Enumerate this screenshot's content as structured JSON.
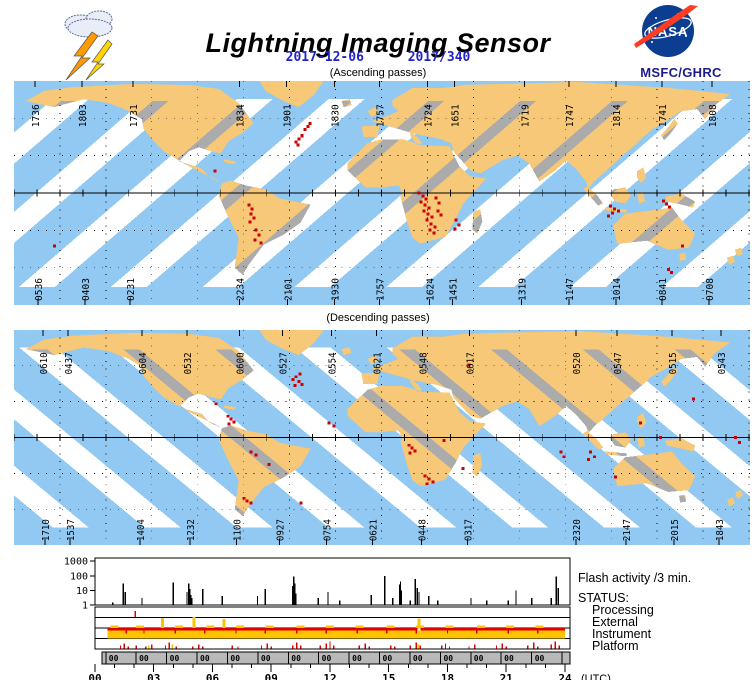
{
  "colors": {
    "swath_blue": "#92c9f2",
    "land_gray": "#ababab",
    "swath_orange": "#f7c878",
    "flash_red": "#cc0000",
    "status_gold": "#ffc400",
    "status_red": "#e00000",
    "orbit_band_gray": "#b9b9b9",
    "date_blue": "#2222cc",
    "org_blue": "#1b1b8f",
    "nasa_blue": "#0b3d91",
    "nasa_red": "#fc3d21"
  },
  "header": {
    "title": "Lightning Imaging Sensor",
    "date_iso": "2017-12-06",
    "date_doy": "2017/340",
    "ascending_caption": "(Ascending passes)",
    "descending_caption": "(Descending passes)",
    "nasa": "NASA",
    "org": "MSFC/GHRC"
  },
  "maps": {
    "ascending": {
      "top_labels": [
        [
          21,
          "1736"
        ],
        [
          68,
          "1803"
        ],
        [
          119,
          "1731"
        ],
        [
          226,
          "1834"
        ],
        [
          273,
          "1901"
        ],
        [
          321,
          "1830"
        ],
        [
          366,
          "1757"
        ],
        [
          414,
          "1724"
        ],
        [
          441,
          "1651"
        ],
        [
          511,
          "1719"
        ],
        [
          556,
          "1747"
        ],
        [
          603,
          "1814"
        ],
        [
          649,
          "1741"
        ],
        [
          699,
          "1808"
        ]
      ],
      "bottom_labels": [
        [
          24,
          "0536"
        ],
        [
          71,
          "0403"
        ],
        [
          116,
          "0231"
        ],
        [
          226,
          "2234"
        ],
        [
          274,
          "2101"
        ],
        [
          321,
          "1930"
        ],
        [
          366,
          "1757"
        ],
        [
          416,
          "1624"
        ],
        [
          439,
          "1451"
        ],
        [
          508,
          "1319"
        ],
        [
          556,
          "1147"
        ],
        [
          603,
          "1014"
        ],
        [
          649,
          "0841"
        ],
        [
          696,
          "0708"
        ]
      ],
      "flash_dots": [
        [
          281,
          59
        ],
        [
          284,
          56
        ],
        [
          287,
          53
        ],
        [
          283,
          62
        ],
        [
          290,
          47
        ],
        [
          293,
          44
        ],
        [
          295,
          41
        ],
        [
          200,
          88
        ],
        [
          234,
          122
        ],
        [
          237,
          126
        ],
        [
          236,
          131
        ],
        [
          239,
          135
        ],
        [
          235,
          139
        ],
        [
          241,
          147
        ],
        [
          244,
          152
        ],
        [
          240,
          157
        ],
        [
          246,
          160
        ],
        [
          404,
          110
        ],
        [
          408,
          113
        ],
        [
          411,
          116
        ],
        [
          406,
          119
        ],
        [
          410,
          122
        ],
        [
          414,
          125
        ],
        [
          409,
          128
        ],
        [
          413,
          131
        ],
        [
          417,
          134
        ],
        [
          412,
          137
        ],
        [
          416,
          141
        ],
        [
          420,
          144
        ],
        [
          415,
          147
        ],
        [
          419,
          150
        ],
        [
          423,
          128
        ],
        [
          426,
          132
        ],
        [
          421,
          115
        ],
        [
          424,
          120
        ],
        [
          441,
          137
        ],
        [
          444,
          142
        ],
        [
          440,
          146
        ],
        [
          596,
          123
        ],
        [
          600,
          126
        ],
        [
          598,
          130
        ],
        [
          604,
          128
        ],
        [
          594,
          133
        ],
        [
          649,
          118
        ],
        [
          652,
          121
        ],
        [
          655,
          124
        ],
        [
          668,
          163
        ],
        [
          654,
          186
        ],
        [
          657,
          189
        ],
        [
          39,
          163
        ]
      ]
    },
    "descending": {
      "top_labels": [
        [
          29,
          "0610"
        ],
        [
          54,
          "0437"
        ],
        [
          128,
          "0604"
        ],
        [
          173,
          "0532"
        ],
        [
          226,
          "0600"
        ],
        [
          269,
          "0527"
        ],
        [
          318,
          "0554"
        ],
        [
          363,
          "0621"
        ],
        [
          409,
          "0548"
        ],
        [
          456,
          "0617"
        ],
        [
          563,
          "0520"
        ],
        [
          604,
          "0547"
        ],
        [
          659,
          "0515"
        ],
        [
          708,
          "0543"
        ]
      ],
      "bottom_labels": [
        [
          31,
          "1710"
        ],
        [
          56,
          "1537"
        ],
        [
          126,
          "1404"
        ],
        [
          176,
          "1232"
        ],
        [
          223,
          "1100"
        ],
        [
          266,
          "0927"
        ],
        [
          313,
          "0754"
        ],
        [
          359,
          "0621"
        ],
        [
          408,
          "0448"
        ],
        [
          454,
          "0317"
        ],
        [
          563,
          "2320"
        ],
        [
          613,
          "2147"
        ],
        [
          661,
          "2015"
        ],
        [
          706,
          "1843"
        ]
      ],
      "flash_dots": [
        [
          278,
          50
        ],
        [
          281,
          47
        ],
        [
          284,
          52
        ],
        [
          287,
          55
        ],
        [
          280,
          56
        ],
        [
          285,
          44
        ],
        [
          201,
          75
        ],
        [
          213,
          88
        ],
        [
          216,
          91
        ],
        [
          219,
          94
        ],
        [
          214,
          96
        ],
        [
          314,
          95
        ],
        [
          319,
          98
        ],
        [
          236,
          125
        ],
        [
          241,
          128
        ],
        [
          254,
          138
        ],
        [
          229,
          173
        ],
        [
          232,
          176
        ],
        [
          236,
          178
        ],
        [
          286,
          178
        ],
        [
          394,
          118
        ],
        [
          397,
          121
        ],
        [
          400,
          124
        ],
        [
          395,
          126
        ],
        [
          429,
          113
        ],
        [
          410,
          150
        ],
        [
          414,
          153
        ],
        [
          418,
          156
        ],
        [
          412,
          158
        ],
        [
          448,
          142
        ],
        [
          454,
          35
        ],
        [
          546,
          125
        ],
        [
          549,
          130
        ],
        [
          576,
          125
        ],
        [
          580,
          130
        ],
        [
          574,
          133
        ],
        [
          679,
          70
        ],
        [
          601,
          151
        ],
        [
          626,
          95
        ],
        [
          646,
          110
        ],
        [
          721,
          110
        ],
        [
          725,
          115
        ]
      ]
    }
  },
  "chart_data": {
    "type": "line",
    "x_unit": "hours UTC",
    "xlim": [
      0,
      24
    ],
    "x_ticks": [
      "00",
      "03",
      "06",
      "09",
      "12",
      "15",
      "18",
      "21",
      "24"
    ],
    "x_suffix": "(UTC)",
    "flash_activity": {
      "label": "Flash activity /3 min.",
      "scale": "log",
      "y_ticks": [
        "1000",
        "100",
        "10",
        "1"
      ],
      "ylim": [
        1,
        1000
      ],
      "spikes": [
        [
          0.9,
          1.5
        ],
        [
          1.45,
          30
        ],
        [
          1.55,
          8
        ],
        [
          2.4,
          3
        ],
        [
          4.0,
          35
        ],
        [
          4.7,
          8
        ],
        [
          4.78,
          30
        ],
        [
          4.85,
          12
        ],
        [
          4.9,
          5
        ],
        [
          4.95,
          3
        ],
        [
          5.5,
          12
        ],
        [
          6.5,
          4
        ],
        [
          8.3,
          4
        ],
        [
          8.7,
          12
        ],
        [
          10.1,
          20
        ],
        [
          10.15,
          90
        ],
        [
          10.2,
          30
        ],
        [
          10.25,
          6
        ],
        [
          11.4,
          3
        ],
        [
          11.9,
          8
        ],
        [
          12.5,
          2
        ],
        [
          14.1,
          5
        ],
        [
          14.8,
          100
        ],
        [
          15.2,
          3
        ],
        [
          15.55,
          25
        ],
        [
          15.6,
          40
        ],
        [
          15.65,
          10
        ],
        [
          16.1,
          2
        ],
        [
          16.35,
          60
        ],
        [
          16.45,
          15
        ],
        [
          16.55,
          8
        ],
        [
          17.05,
          4
        ],
        [
          17.5,
          2
        ],
        [
          19.2,
          3
        ],
        [
          20.0,
          2
        ],
        [
          21.1,
          2
        ],
        [
          21.5,
          10
        ],
        [
          22.3,
          3
        ],
        [
          23.3,
          3
        ],
        [
          23.55,
          90
        ],
        [
          23.65,
          15
        ]
      ]
    },
    "status": {
      "label": "STATUS:",
      "rows": [
        "Processing",
        "External",
        "Instrument",
        "Platform"
      ],
      "processing_events": [
        [
          2.05,
          6
        ]
      ],
      "external_dashes": [
        1.0,
        2.3,
        4.3,
        5.9,
        7.4,
        8.9,
        10.5,
        12.0,
        13.5,
        15.1,
        16.6,
        18.1,
        19.7,
        21.2,
        22.7
      ],
      "external_spikes": [
        [
          3.45,
          10
        ],
        [
          5.05,
          11
        ],
        [
          6.6,
          9
        ]
      ],
      "instrument_band": {
        "start": 0.65,
        "end": 24.0,
        "gap": 16.55
      },
      "instrument_ticks": [
        1.6,
        2.5,
        4.1,
        5.6,
        7.2,
        8.7,
        10.3,
        11.8,
        13.4,
        14.9,
        16.4,
        18.0,
        19.5,
        21.1,
        22.6
      ],
      "platform_spikes": [
        [
          1.3,
          3
        ],
        [
          1.5,
          5
        ],
        [
          1.7,
          2
        ],
        [
          2.1,
          3
        ],
        [
          2.6,
          2
        ],
        [
          2.75,
          3,
          "g"
        ],
        [
          2.9,
          4
        ],
        [
          3.6,
          3
        ],
        [
          3.8,
          6
        ],
        [
          3.95,
          4,
          "g"
        ],
        [
          4.15,
          2
        ],
        [
          5.0,
          2
        ],
        [
          5.3,
          4
        ],
        [
          5.5,
          2
        ],
        [
          7.0,
          3
        ],
        [
          7.3,
          2
        ],
        [
          8.5,
          3
        ],
        [
          8.8,
          5
        ],
        [
          9.0,
          2
        ],
        [
          10.1,
          3
        ],
        [
          10.3,
          6
        ],
        [
          10.5,
          3
        ],
        [
          11.5,
          3
        ],
        [
          11.8,
          5
        ],
        [
          12.0,
          7
        ],
        [
          12.2,
          3
        ],
        [
          13.5,
          3
        ],
        [
          13.8,
          5
        ],
        [
          14.0,
          2
        ],
        [
          15.1,
          3
        ],
        [
          15.3,
          2
        ],
        [
          16.1,
          3
        ],
        [
          16.4,
          6
        ],
        [
          16.5,
          4,
          "g"
        ],
        [
          16.6,
          3
        ],
        [
          17.7,
          3
        ],
        [
          17.9,
          5
        ],
        [
          18.1,
          2
        ],
        [
          19.1,
          2
        ],
        [
          19.4,
          4
        ],
        [
          20.5,
          3
        ],
        [
          20.8,
          5
        ],
        [
          21.0,
          2
        ],
        [
          22.1,
          3
        ],
        [
          22.4,
          6
        ],
        [
          22.6,
          2
        ],
        [
          23.3,
          4
        ],
        [
          23.5,
          7
        ],
        [
          23.7,
          3
        ]
      ],
      "orbit_band_label": "00",
      "orbit_starts": [
        0.55,
        2.1,
        3.66,
        5.21,
        6.76,
        8.32,
        9.87,
        11.42,
        12.98,
        14.53,
        16.08,
        17.64,
        19.19,
        20.74,
        22.3,
        23.85
      ]
    }
  }
}
